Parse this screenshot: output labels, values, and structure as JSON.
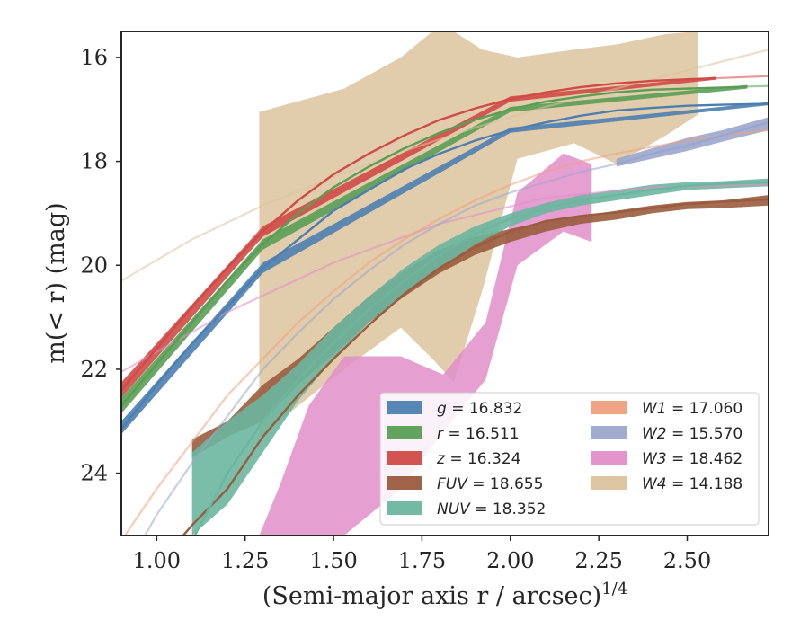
{
  "chart_data": {
    "type": "line",
    "title": "",
    "xlabel": "(Semi-major axis r / arcsec)",
    "xlabel_superscript": "1/4",
    "ylabel": "m(< r) (mag)",
    "xlim": [
      0.9,
      2.73
    ],
    "ylim": [
      25.2,
      15.5
    ],
    "y_inverted": true,
    "x_ticks": [
      "1.00",
      "1.25",
      "1.50",
      "1.75",
      "2.00",
      "2.25",
      "2.50"
    ],
    "x_tick_values": [
      1.0,
      1.25,
      1.5,
      1.75,
      2.0,
      2.25,
      2.5
    ],
    "y_ticks": [
      "16",
      "18",
      "20",
      "22",
      "24"
    ],
    "y_tick_values": [
      16,
      18,
      20,
      22,
      24
    ],
    "grid": false,
    "legend_position": "lower-right",
    "legend_columns": 2,
    "series": [
      {
        "name": "g = 16.832",
        "band": "g",
        "value": "16.832",
        "color": "#4c7fb0",
        "x": [
          0.9,
          1.0,
          1.1,
          1.2,
          1.3,
          1.4,
          1.5,
          1.6,
          1.7,
          1.8,
          1.9,
          2.0,
          2.1,
          2.2,
          2.3,
          2.4,
          2.5,
          2.6,
          2.73
        ],
        "y": [
          23.15,
          22.3,
          21.5,
          20.8,
          20.05,
          19.5,
          18.95,
          18.55,
          18.15,
          17.85,
          17.6,
          17.4,
          17.25,
          17.12,
          17.02,
          16.97,
          16.93,
          16.91,
          16.89
        ],
        "band_x": [
          0.9,
          1.3,
          2.0,
          2.73
        ],
        "band_upper": [
          23.0,
          19.95,
          17.35,
          16.86
        ],
        "band_lower": [
          23.25,
          20.15,
          17.45,
          16.92
        ],
        "faint_x": [],
        "faint_y": []
      },
      {
        "name": "r = 16.511",
        "band": "r",
        "value": "16.511",
        "color": "#5a9e55",
        "x": [
          0.9,
          1.0,
          1.1,
          1.2,
          1.3,
          1.4,
          1.5,
          1.6,
          1.7,
          1.8,
          1.9,
          2.0,
          2.1,
          2.2,
          2.3,
          2.4,
          2.5,
          2.6,
          2.67
        ],
        "y": [
          22.7,
          21.9,
          21.1,
          20.3,
          19.6,
          19.0,
          18.5,
          18.1,
          17.75,
          17.45,
          17.2,
          17.0,
          16.85,
          16.75,
          16.67,
          16.62,
          16.6,
          16.58,
          16.56
        ],
        "band_x": [
          0.9,
          1.3,
          2.0,
          2.67
        ],
        "band_upper": [
          22.55,
          19.5,
          16.95,
          16.53
        ],
        "band_lower": [
          22.85,
          19.7,
          17.05,
          16.6
        ],
        "faint_x": [
          2.67,
          2.73
        ],
        "faint_y": [
          16.56,
          16.55
        ]
      },
      {
        "name": "z = 16.324",
        "band": "z",
        "value": "16.324",
        "color": "#d04a46",
        "x": [
          0.9,
          1.0,
          1.1,
          1.2,
          1.3,
          1.4,
          1.5,
          1.6,
          1.7,
          1.8,
          1.9,
          2.0,
          2.1,
          2.2,
          2.3,
          2.4,
          2.5,
          2.58
        ],
        "y": [
          22.4,
          21.6,
          20.8,
          20.05,
          19.35,
          18.75,
          18.25,
          17.85,
          17.5,
          17.2,
          16.98,
          16.8,
          16.67,
          16.57,
          16.5,
          16.45,
          16.42,
          16.4
        ],
        "band_x": [
          0.9,
          1.3,
          2.0,
          2.58
        ],
        "band_upper": [
          22.25,
          19.25,
          16.75,
          16.37
        ],
        "band_lower": [
          22.55,
          19.45,
          16.85,
          16.43
        ],
        "faint_x": [
          2.58,
          2.73
        ],
        "faint_y": [
          16.4,
          16.36
        ]
      },
      {
        "name": "FUV = 18.655",
        "band": "FUV",
        "value": "18.655",
        "color": "#9a5c3d",
        "x": [
          0.9,
          1.0,
          1.1,
          1.2,
          1.3,
          1.4,
          1.5,
          1.6,
          1.7,
          1.8,
          1.9,
          2.0,
          2.1,
          2.2,
          2.3,
          2.4,
          2.5,
          2.6,
          2.73
        ],
        "y": [
          26.5,
          25.8,
          25.0,
          24.3,
          23.3,
          22.5,
          21.8,
          21.15,
          20.55,
          20.05,
          19.65,
          19.35,
          19.15,
          19.05,
          18.98,
          18.9,
          18.82,
          18.78,
          18.73
        ],
        "band_x": [
          1.1,
          1.2,
          1.3,
          1.4,
          1.5,
          1.6,
          1.7,
          1.8,
          1.9,
          2.0,
          2.1,
          2.2,
          2.3,
          2.4,
          2.5,
          2.6,
          2.73
        ],
        "band_upper": [
          23.35,
          23.0,
          22.3,
          21.8,
          21.2,
          20.6,
          20.1,
          19.7,
          19.45,
          19.3,
          19.15,
          19.05,
          18.95,
          18.85,
          18.78,
          18.75,
          18.65
        ],
        "band_lower": [
          23.7,
          23.3,
          23.0,
          22.3,
          21.7,
          21.1,
          20.6,
          20.15,
          19.8,
          19.55,
          19.35,
          19.2,
          19.12,
          19.0,
          18.92,
          18.9,
          18.85
        ],
        "faint_x": [
          0.9,
          1.0,
          1.1
        ],
        "faint_y": [
          26.5,
          25.8,
          25.0
        ]
      },
      {
        "name": "NUV = 18.352",
        "band": "NUV",
        "value": "18.352",
        "color": "#6cb6a0",
        "x": [
          0.9,
          1.0,
          1.1,
          1.2,
          1.3,
          1.4,
          1.5,
          1.6,
          1.7,
          1.8,
          1.9,
          2.0,
          2.1,
          2.2,
          2.3,
          2.4,
          2.5,
          2.6,
          2.73
        ],
        "y": [
          26.5,
          25.8,
          25.3,
          24.0,
          23.0,
          22.2,
          21.5,
          20.85,
          20.3,
          19.8,
          19.4,
          19.1,
          18.9,
          18.75,
          18.65,
          18.55,
          18.47,
          18.43,
          18.4
        ],
        "band_x": [
          1.1,
          1.2,
          1.3,
          1.4,
          1.5,
          1.6,
          1.7,
          1.8,
          1.9,
          2.0,
          2.1,
          2.2,
          2.3,
          2.4,
          2.5,
          2.6,
          2.73
        ],
        "band_upper": [
          23.6,
          23.0,
          22.5,
          21.9,
          21.2,
          20.6,
          20.05,
          19.6,
          19.25,
          19.0,
          18.8,
          18.65,
          18.55,
          18.45,
          18.4,
          18.38,
          18.33
        ],
        "band_lower": [
          25.2,
          24.6,
          23.6,
          22.6,
          21.8,
          21.1,
          20.55,
          20.05,
          19.6,
          19.25,
          19.0,
          18.85,
          18.75,
          18.65,
          18.55,
          18.52,
          18.48
        ],
        "faint_x": [
          0.9,
          1.0,
          1.1
        ],
        "faint_y": [
          26.5,
          25.8,
          25.3
        ]
      },
      {
        "name": "W1 = 17.060",
        "band": "W1",
        "value": "17.060",
        "color": "#eea07e",
        "x": [],
        "y": [],
        "band_x": [],
        "band_upper": [],
        "band_lower": [],
        "faint_x": [
          0.9,
          1.0,
          1.1,
          1.2,
          1.3,
          1.4,
          1.5,
          1.6,
          1.7,
          1.8,
          1.9,
          2.0,
          2.1,
          2.2,
          2.3,
          2.4,
          2.5,
          2.6,
          2.73
        ],
        "faint_y": [
          25.3,
          24.3,
          23.4,
          22.5,
          21.8,
          21.1,
          20.5,
          19.95,
          19.5,
          19.1,
          18.75,
          18.45,
          18.2,
          18.0,
          17.85,
          17.72,
          17.6,
          17.5,
          17.4
        ]
      },
      {
        "name": "W2 = 15.570",
        "band": "W2",
        "value": "15.570",
        "color": "#9ba6cc",
        "x": [
          2.3,
          2.4,
          2.5,
          2.6,
          2.73
        ],
        "y": [
          18.05,
          17.85,
          17.7,
          17.5,
          17.25
        ],
        "band_x": [
          2.3,
          2.4,
          2.5,
          2.6,
          2.73
        ],
        "band_upper": [
          17.95,
          17.75,
          17.55,
          17.4,
          17.15
        ],
        "band_lower": [
          18.1,
          17.95,
          17.8,
          17.62,
          17.4
        ],
        "faint_x": [
          0.9,
          1.0,
          1.1,
          1.2,
          1.3,
          1.4,
          1.5,
          1.6,
          1.7,
          1.8,
          1.9,
          2.0,
          2.1,
          2.2,
          2.3
        ],
        "faint_y": [
          26.0,
          24.8,
          23.8,
          22.9,
          22.0,
          21.3,
          20.65,
          20.1,
          19.6,
          19.2,
          18.85,
          18.6,
          18.4,
          18.2,
          18.05
        ]
      },
      {
        "name": "W3 = 18.462",
        "band": "W3",
        "value": "18.462",
        "color": "#e18ec8",
        "x": [],
        "y": [],
        "band_x": [
          1.29,
          1.35,
          1.43,
          1.53,
          1.69,
          1.81,
          1.93,
          2.02,
          2.15,
          2.23
        ],
        "band_upper": [
          25.2,
          24.2,
          22.7,
          21.75,
          21.75,
          22.1,
          21.1,
          18.6,
          17.85,
          18.05
        ],
        "band_lower": [
          25.2,
          25.2,
          25.2,
          25.2,
          24.3,
          23.2,
          22.2,
          20.0,
          19.35,
          19.55
        ],
        "faint_x": [
          0.9,
          1.2,
          1.5,
          1.8,
          2.1,
          2.4,
          2.73
        ],
        "faint_y": [
          22.05,
          20.9,
          19.95,
          19.2,
          18.7,
          18.5,
          18.45
        ]
      },
      {
        "name": "W4 = 14.188",
        "band": "W4",
        "value": "14.188",
        "color": "#dcc39e",
        "x": [],
        "y": [],
        "band_x": [
          1.29,
          1.53,
          1.69,
          1.78,
          1.84,
          1.92,
          2.02,
          2.18,
          2.3,
          2.44,
          2.53
        ],
        "band_upper": [
          17.05,
          16.6,
          16.0,
          15.5,
          15.5,
          15.85,
          16.0,
          15.85,
          15.75,
          15.55,
          15.5
        ],
        "band_lower": [
          23.3,
          22.0,
          21.2,
          21.8,
          22.25,
          20.5,
          17.95,
          17.65,
          18.05,
          17.5,
          17.1
        ],
        "faint_x": [
          0.9,
          1.1,
          1.3,
          1.5,
          1.7,
          1.9,
          2.1,
          2.3,
          2.5,
          2.73
        ],
        "faint_y": [
          20.3,
          19.5,
          18.85,
          18.3,
          17.8,
          17.35,
          16.95,
          16.6,
          16.25,
          15.85
        ]
      }
    ]
  }
}
